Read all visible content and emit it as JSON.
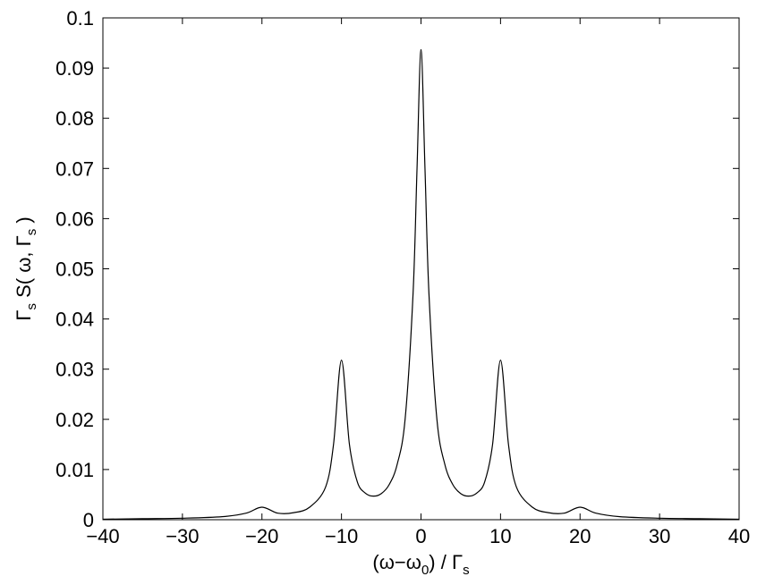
{
  "chart_data": {
    "type": "line",
    "xlabel": {
      "pre": "(ω−ω",
      "sub1": "0",
      "mid": ") / Γ",
      "sub2": "s"
    },
    "ylabel": {
      "p1": "Γ",
      "s1": "s",
      "p2": " S( ω, Γ",
      "s2": "s",
      "p3": " )"
    },
    "xlim": [
      -40,
      40
    ],
    "ylim": [
      0,
      0.1
    ],
    "xticks": [
      -40,
      -30,
      -20,
      -10,
      0,
      10,
      20,
      30,
      40
    ],
    "xtick_labels": [
      "−40",
      "−30",
      "−20",
      "−10",
      "0",
      "10",
      "20",
      "30",
      "40"
    ],
    "yticks": [
      0,
      0.01,
      0.02,
      0.03,
      0.04,
      0.05,
      0.06,
      0.07,
      0.08,
      0.09,
      0.1
    ],
    "ytick_labels": [
      "0",
      "0.01",
      "0.02",
      "0.03",
      "0.04",
      "0.05",
      "0.06",
      "0.07",
      "0.08",
      "0.09",
      "0.1"
    ],
    "grid": false,
    "line_color": "#000000",
    "peaks": [
      {
        "x": -20,
        "y": 0.0025
      },
      {
        "x": -10,
        "y": 0.0318
      },
      {
        "x": 0,
        "y": 0.0937
      },
      {
        "x": 10,
        "y": 0.0318
      },
      {
        "x": 20,
        "y": 0.0025
      }
    ],
    "series": [
      {
        "x": [
          -40,
          -35,
          -30,
          -25,
          -22,
          -20,
          -18,
          -16,
          -14,
          -12,
          -11,
          -10,
          -9,
          -8,
          -7,
          -6,
          -5,
          -4,
          -3,
          -2,
          -1,
          -0.5,
          0,
          0.5,
          1,
          2,
          3,
          4,
          5,
          6,
          7,
          8,
          9,
          10,
          11,
          12,
          14,
          16,
          18,
          20,
          22,
          25,
          30,
          35,
          40
        ],
        "y": [
          0.0001,
          0.0002,
          0.0003,
          0.0006,
          0.0013,
          0.0025,
          0.0013,
          0.0014,
          0.0025,
          0.0065,
          0.015,
          0.0318,
          0.015,
          0.0075,
          0.0053,
          0.0047,
          0.0052,
          0.007,
          0.011,
          0.02,
          0.045,
          0.07,
          0.0937,
          0.07,
          0.045,
          0.02,
          0.011,
          0.007,
          0.0052,
          0.0047,
          0.0053,
          0.0075,
          0.015,
          0.0318,
          0.015,
          0.0065,
          0.0025,
          0.0014,
          0.0013,
          0.0025,
          0.0013,
          0.0006,
          0.0003,
          0.0002,
          0.0001
        ]
      }
    ]
  }
}
